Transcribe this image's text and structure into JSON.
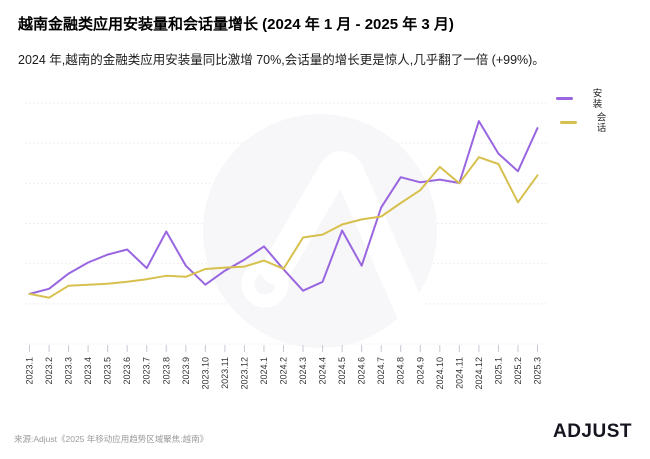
{
  "header": {
    "title": "越南金融类应用安装量和会话量增长 (2024 年 1 月 - 2025 年 3 月)",
    "subtitle": "2024 年,越南的金融类应用安装量同比激增 70%,会话量的增长更是惊人,几乎翻了一倍 (+99%)。"
  },
  "chart_data": {
    "type": "line",
    "title": "越南金融类应用安装量和会话量增长 (2024 年 1 月 - 2025 年 3 月)",
    "categories": [
      "2023.1",
      "2023.2",
      "2023.3",
      "2023.4",
      "2023.5",
      "2023.6",
      "2023.7",
      "2023.8",
      "2023.9",
      "2023.10",
      "2023.11",
      "2023.12",
      "2024.1",
      "2024.2",
      "2024.3",
      "2024.4",
      "2024.5",
      "2024.6",
      "2024.7",
      "2024.8",
      "2024.9",
      "2024.10",
      "2024.11",
      "2024.12",
      "2025.1",
      "2025.2",
      "2025.3"
    ],
    "series": [
      {
        "name": "安装",
        "color": "#9966e0",
        "values": [
          20.8,
          22.9,
          29.2,
          33.8,
          37.1,
          39.2,
          31.5,
          46.7,
          32.5,
          24.6,
          30.4,
          35.0,
          40.5,
          31.0,
          22.1,
          25.8,
          47.1,
          32.5,
          56.7,
          69.2,
          67.1,
          68.2,
          66.8,
          92.5,
          79.0,
          71.7,
          89.6
        ]
      },
      {
        "name": "会话",
        "color": "#d7c04d",
        "values": [
          20.8,
          19.2,
          24.2,
          24.6,
          25.0,
          25.8,
          26.9,
          28.3,
          27.9,
          31.1,
          31.7,
          32.1,
          34.6,
          31.2,
          44.2,
          45.4,
          49.6,
          51.7,
          52.9,
          58.5,
          63.8,
          73.5,
          66.7,
          77.5,
          74.7,
          58.8,
          70.0
        ]
      }
    ],
    "xlabel": "",
    "ylabel": "",
    "ylim": [
      0,
      100
    ],
    "y_axis_labels_visible": false,
    "gridlines": "horizontal-dotted",
    "legend_position": "top-right",
    "x_tick_rotation": 90
  },
  "footer": {
    "source": "来源:Adjust《2025 年移动应用趋势区域聚焦:越南》",
    "logo_text": "ADJUST"
  },
  "colors": {
    "installs_line": "#9966e0",
    "sessions_line": "#d7c04d",
    "gridline": "#e9e9f0",
    "axis_tick": "#c8c8d2",
    "tick_label": "#333333",
    "watermark_fill": "#f7f7f9",
    "source_text": "#9b9b9b",
    "logo": "#15151f"
  }
}
